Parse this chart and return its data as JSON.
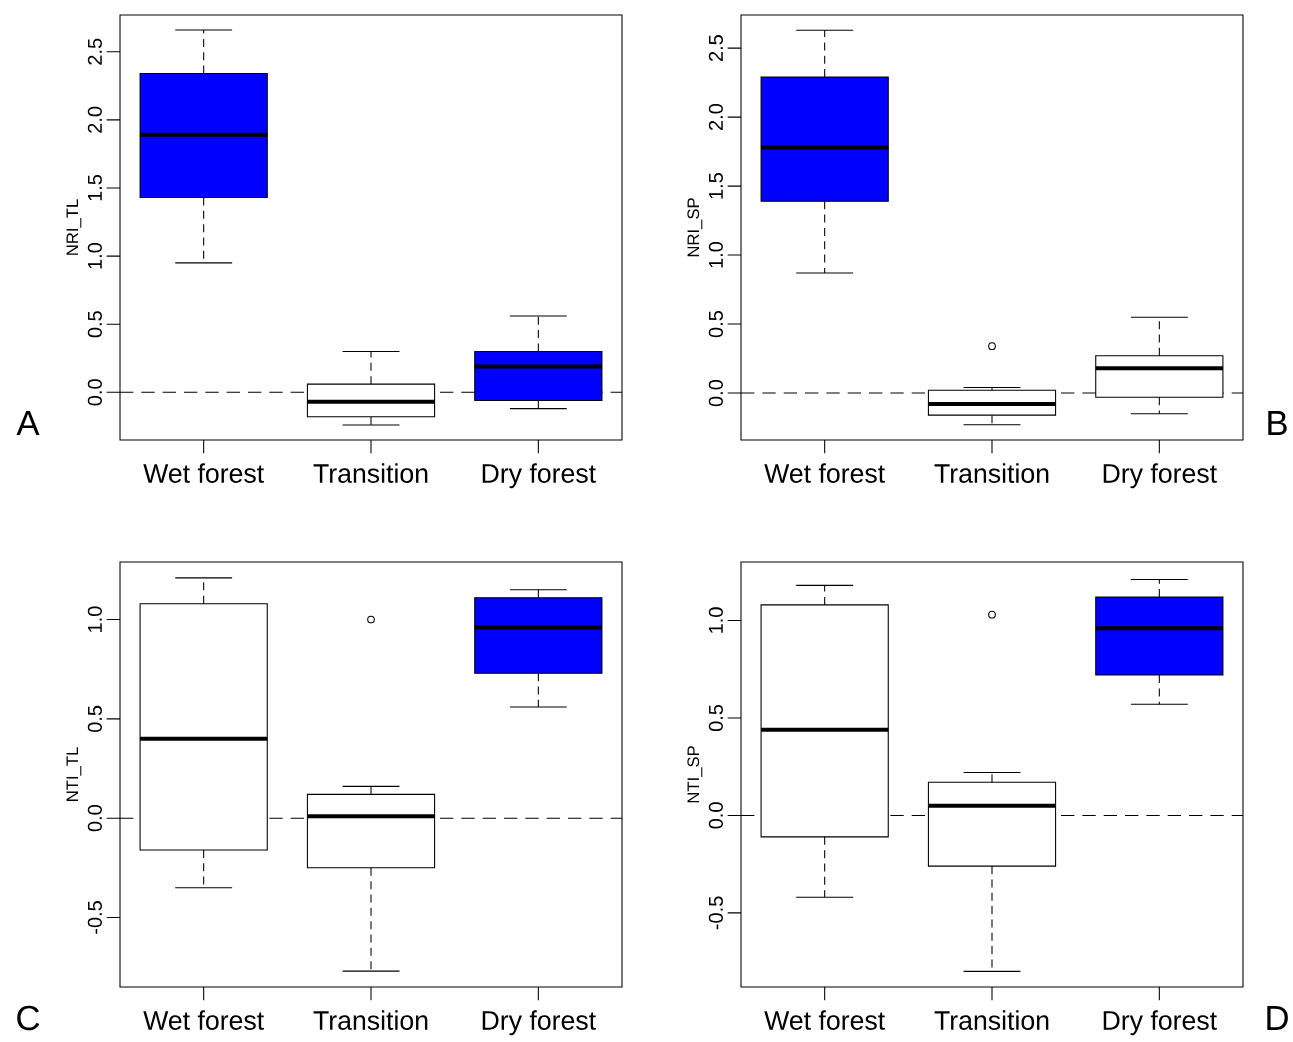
{
  "chart_data": [
    {
      "type": "box",
      "ylabel": "NRI_TL",
      "categories": [
        "Wet forest",
        "Transition",
        "Dry forest"
      ],
      "colors": [
        "#0000ff",
        "#ffffff",
        "#0000ff"
      ],
      "boxes": [
        {
          "low": 0.95,
          "q1": 1.43,
          "median": 1.89,
          "q3": 2.34,
          "high": 2.66
        },
        {
          "low": -0.24,
          "q1": -0.18,
          "median": -0.07,
          "q3": 0.06,
          "high": 0.3
        },
        {
          "low": -0.12,
          "q1": -0.06,
          "median": 0.19,
          "q3": 0.3,
          "high": 0.56
        }
      ],
      "ylim": [
        -0.35,
        2.77
      ],
      "yticks": [
        {
          "value": 0,
          "label": "0.0"
        },
        {
          "value": 0.5,
          "label": "0.5"
        },
        {
          "value": 1,
          "label": "1.0"
        },
        {
          "value": 1.5,
          "label": "1.5"
        },
        {
          "value": 2,
          "label": "2.0"
        },
        {
          "value": 2.5,
          "label": "2.5"
        }
      ],
      "ref_lines": [
        {
          "axis": "y",
          "value": 0,
          "line_style": "dashed"
        }
      ],
      "annotations": [
        "A"
      ]
    },
    {
      "type": "box",
      "ylabel": "NRI_SP",
      "categories": [
        "Wet forest",
        "Transition",
        "Dry forest"
      ],
      "colors": [
        "#0000ff",
        "#ffffff",
        "#ffffff"
      ],
      "boxes": [
        {
          "low": 0.87,
          "q1": 1.39,
          "median": 1.78,
          "q3": 2.29,
          "high": 2.63
        },
        {
          "low": -0.23,
          "q1": -0.16,
          "median": -0.08,
          "q3": 0.02,
          "high": 0.04,
          "outliers": [
            0.34
          ]
        },
        {
          "low": -0.15,
          "q1": -0.03,
          "median": 0.18,
          "q3": 0.27,
          "high": 0.55
        }
      ],
      "ylim": [
        -0.34,
        2.74
      ],
      "yticks": [
        {
          "value": 0,
          "label": "0.0"
        },
        {
          "value": 0.5,
          "label": "0.5"
        },
        {
          "value": 1,
          "label": "1.0"
        },
        {
          "value": 1.5,
          "label": "1.5"
        },
        {
          "value": 2,
          "label": "2.0"
        },
        {
          "value": 2.5,
          "label": "2.5"
        }
      ],
      "ref_lines": [
        {
          "axis": "y",
          "value": 0,
          "line_style": "dashed"
        }
      ],
      "annotations": [
        "B"
      ]
    },
    {
      "type": "box",
      "ylabel": "NTI_TL",
      "categories": [
        "Wet forest",
        "Transition",
        "Dry forest"
      ],
      "colors": [
        "#ffffff",
        "#ffffff",
        "#0000ff"
      ],
      "boxes": [
        {
          "low": -0.35,
          "q1": -0.16,
          "median": 0.4,
          "q3": 1.08,
          "high": 1.21
        },
        {
          "low": -0.77,
          "q1": -0.25,
          "median": 0.01,
          "q3": 0.12,
          "high": 0.16,
          "outliers": [
            1.0
          ]
        },
        {
          "low": 0.56,
          "q1": 0.73,
          "median": 0.96,
          "q3": 1.11,
          "high": 1.15
        }
      ],
      "ylim": [
        -0.85,
        1.29
      ],
      "yticks": [
        {
          "value": -0.5,
          "label": "-0.5"
        },
        {
          "value": 0,
          "label": "0.0"
        },
        {
          "value": 0.5,
          "label": "0.5"
        },
        {
          "value": 1,
          "label": "1.0"
        }
      ],
      "ref_lines": [
        {
          "axis": "y",
          "value": 0,
          "line_style": "dashed"
        }
      ],
      "annotations": [
        "C"
      ]
    },
    {
      "type": "box",
      "ylabel": "NTI_SP",
      "categories": [
        "Wet forest",
        "Transition",
        "Dry forest"
      ],
      "colors": [
        "#ffffff",
        "#ffffff",
        "#0000ff"
      ],
      "boxes": [
        {
          "low": -0.42,
          "q1": -0.11,
          "median": 0.44,
          "q3": 1.08,
          "high": 1.18
        },
        {
          "low": -0.8,
          "q1": -0.26,
          "median": 0.05,
          "q3": 0.17,
          "high": 0.22,
          "outliers": [
            1.03
          ]
        },
        {
          "low": 0.57,
          "q1": 0.72,
          "median": 0.96,
          "q3": 1.12,
          "high": 1.21
        }
      ],
      "ylim": [
        -0.88,
        1.3
      ],
      "yticks": [
        {
          "value": -0.5,
          "label": "-0.5"
        },
        {
          "value": 0,
          "label": "0.0"
        },
        {
          "value": 0.5,
          "label": "0.5"
        },
        {
          "value": 1,
          "label": "1.0"
        }
      ],
      "ref_lines": [
        {
          "axis": "y",
          "value": 0,
          "line_style": "dashed"
        }
      ],
      "annotations": [
        "D"
      ]
    }
  ]
}
